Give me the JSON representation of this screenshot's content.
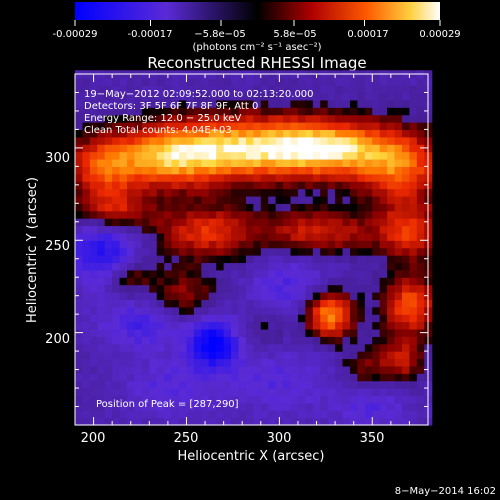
{
  "colorbar": {
    "tick_labels": [
      "-0.00029",
      "-0.00017",
      "−5.8e−05",
      "5.8e−05",
      "0.00017",
      "0.00029"
    ],
    "tick_values": [
      -0.00029,
      -0.00017,
      -5.8e-05,
      5.8e-05,
      0.00017,
      0.00029
    ],
    "range": [
      -0.00029,
      0.00029
    ],
    "unit_label": "(photons cm⁻² s⁻¹ asec⁻²)"
  },
  "chart_data": {
    "type": "heatmap",
    "title": "Reconstructed RHESSI Image",
    "xlabel": "Heliocentric X (arcsec)",
    "ylabel": "Heliocentric Y (arcsec)",
    "xlim": [
      190,
      380
    ],
    "ylim": [
      150,
      340
    ],
    "x_ticks": [
      200,
      250,
      300,
      350
    ],
    "y_ticks": [
      200,
      250,
      300
    ],
    "annotations": [
      "19−May−2012 02:09:52.000 to 02:13:20.000",
      "Detectors: 3F 5F 6F 7F 8F 9F, Att 0",
      "Energy Range: 12.0 − 25.0 keV",
      "Clean     Total counts: 4.04E+03"
    ],
    "peak_label": "Position of Peak = [287,290]",
    "peak": [
      287,
      290
    ],
    "sources": [
      {
        "x": 287,
        "y": 300,
        "sx": 32,
        "sy": 12,
        "amp": 1.0
      },
      {
        "x": 330,
        "y": 300,
        "sx": 20,
        "sy": 10,
        "amp": 0.7
      },
      {
        "x": 365,
        "y": 290,
        "sx": 16,
        "sy": 14,
        "amp": 0.7
      },
      {
        "x": 240,
        "y": 295,
        "sx": 20,
        "sy": 12,
        "amp": 0.7
      },
      {
        "x": 205,
        "y": 290,
        "sx": 14,
        "sy": 12,
        "amp": 0.6
      },
      {
        "x": 210,
        "y": 265,
        "sx": 14,
        "sy": 8,
        "amp": 0.55
      },
      {
        "x": 260,
        "y": 255,
        "sx": 18,
        "sy": 10,
        "amp": 0.55
      },
      {
        "x": 320,
        "y": 255,
        "sx": 22,
        "sy": 8,
        "amp": 0.5
      },
      {
        "x": 370,
        "y": 255,
        "sx": 12,
        "sy": 10,
        "amp": 0.55
      },
      {
        "x": 220,
        "y": 230,
        "sx": 10,
        "sy": 8,
        "amp": 0.35
      },
      {
        "x": 250,
        "y": 220,
        "sx": 12,
        "sy": 10,
        "amp": 0.35
      },
      {
        "x": 327,
        "y": 210,
        "sx": 9,
        "sy": 9,
        "amp": 0.85
      },
      {
        "x": 370,
        "y": 215,
        "sx": 10,
        "sy": 12,
        "amp": 0.65
      },
      {
        "x": 365,
        "y": 185,
        "sx": 9,
        "sy": 8,
        "amp": 0.45
      },
      {
        "x": 345,
        "y": 180,
        "sx": 8,
        "sy": 8,
        "amp": 0.3
      },
      {
        "x": 290,
        "y": 200,
        "sx": 12,
        "sy": 8,
        "amp": 0.2
      },
      {
        "x": 265,
        "y": 195,
        "sx": 10,
        "sy": 10,
        "amp": -0.7
      },
      {
        "x": 205,
        "y": 245,
        "sx": 14,
        "sy": 14,
        "amp": -0.55
      },
      {
        "x": 225,
        "y": 205,
        "sx": 16,
        "sy": 10,
        "amp": -0.35
      },
      {
        "x": 305,
        "y": 225,
        "sx": 16,
        "sy": 12,
        "amp": -0.3
      },
      {
        "x": 300,
        "y": 175,
        "sx": 22,
        "sy": 14,
        "amp": -0.25
      },
      {
        "x": 240,
        "y": 170,
        "sx": 18,
        "sy": 12,
        "amp": -0.25
      },
      {
        "x": 350,
        "y": 160,
        "sx": 14,
        "sy": 10,
        "amp": -0.25
      }
    ],
    "baseline": -0.12
  },
  "footer": {
    "timestamp": "8−May−2014 16:02"
  }
}
